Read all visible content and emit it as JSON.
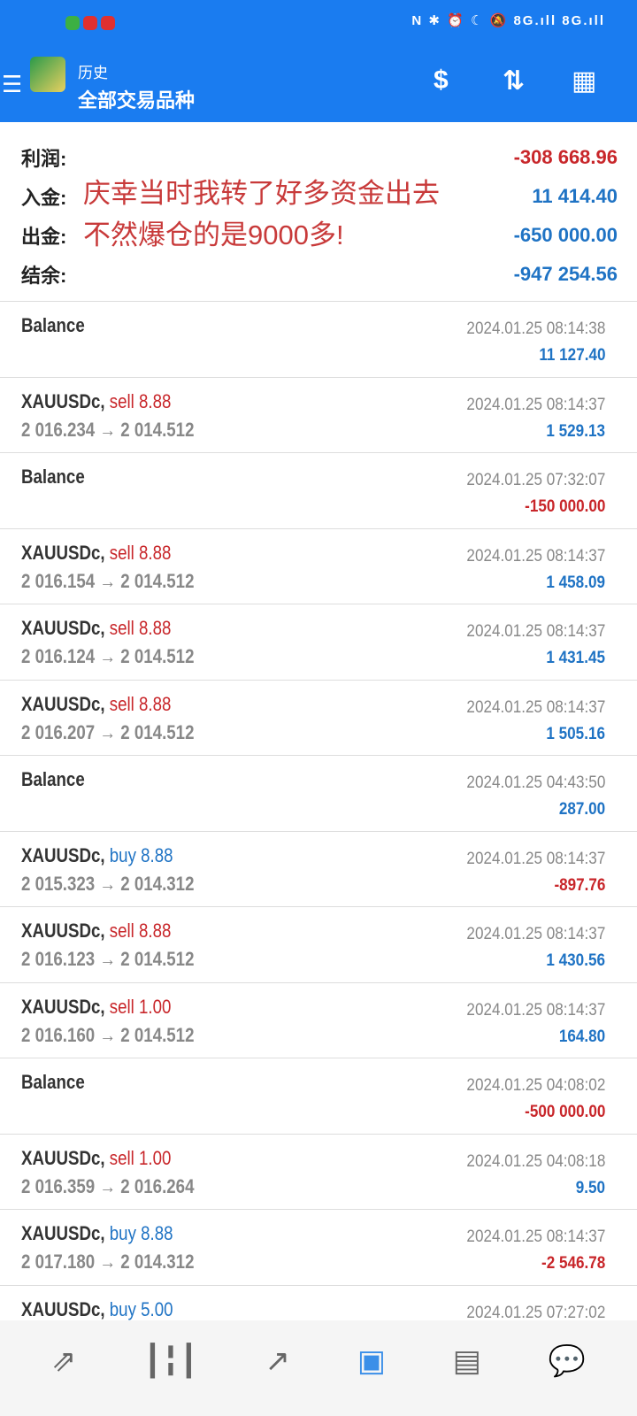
{
  "status": {
    "right": "N ✱ ⏰ ☾ 🔕 8G.ıll 8G.ıll"
  },
  "header": {
    "title": "历史",
    "subtitle": "全部交易品种",
    "icons": [
      "menu-icon",
      "app-logo",
      "currency-icon",
      "sort-icon",
      "calendar-icon"
    ]
  },
  "summary": [
    {
      "label": "利润:",
      "value": "-308 668.96",
      "color": "red"
    },
    {
      "label": "入金:",
      "value": "11 414.40",
      "color": "blue"
    },
    {
      "label": "出金:",
      "value": "-650 000.00",
      "color": "blue"
    },
    {
      "label": "结余:",
      "value": "-947 254.56",
      "color": "blue"
    }
  ],
  "overlay": {
    "line1": "庆幸当时我转了好多资金出去",
    "line2": "不然爆仓的是9000多!"
  },
  "rows": [
    {
      "sym": "Balance",
      "dir": "",
      "dirColor": "",
      "price": "",
      "time": "2024.01.25 08:14:38",
      "pl": "11 127.40",
      "plColor": "blue"
    },
    {
      "sym": "XAUUSDc,",
      "dir": "sell 8.88",
      "dirColor": "red",
      "price": "2 016.234 → 2 014.512",
      "time": "2024.01.25 08:14:37",
      "pl": "1 529.13",
      "plColor": "blue"
    },
    {
      "sym": "Balance",
      "dir": "",
      "dirColor": "",
      "price": "",
      "time": "2024.01.25 07:32:07",
      "pl": "-150 000.00",
      "plColor": "red"
    },
    {
      "sym": "XAUUSDc,",
      "dir": "sell 8.88",
      "dirColor": "red",
      "price": "2 016.154 → 2 014.512",
      "time": "2024.01.25 08:14:37",
      "pl": "1 458.09",
      "plColor": "blue"
    },
    {
      "sym": "XAUUSDc,",
      "dir": "sell 8.88",
      "dirColor": "red",
      "price": "2 016.124 → 2 014.512",
      "time": "2024.01.25 08:14:37",
      "pl": "1 431.45",
      "plColor": "blue"
    },
    {
      "sym": "XAUUSDc,",
      "dir": "sell 8.88",
      "dirColor": "red",
      "price": "2 016.207 → 2 014.512",
      "time": "2024.01.25 08:14:37",
      "pl": "1 505.16",
      "plColor": "blue"
    },
    {
      "sym": "Balance",
      "dir": "",
      "dirColor": "",
      "price": "",
      "time": "2024.01.25 04:43:50",
      "pl": "287.00",
      "plColor": "blue"
    },
    {
      "sym": "XAUUSDc,",
      "dir": "buy 8.88",
      "dirColor": "blue",
      "price": "2 015.323 → 2 014.312",
      "time": "2024.01.25 08:14:37",
      "pl": "-897.76",
      "plColor": "red"
    },
    {
      "sym": "XAUUSDc,",
      "dir": "sell 8.88",
      "dirColor": "red",
      "price": "2 016.123 → 2 014.512",
      "time": "2024.01.25 08:14:37",
      "pl": "1 430.56",
      "plColor": "blue"
    },
    {
      "sym": "XAUUSDc,",
      "dir": "sell 1.00",
      "dirColor": "red",
      "price": "2 016.160 → 2 014.512",
      "time": "2024.01.25 08:14:37",
      "pl": "164.80",
      "plColor": "blue"
    },
    {
      "sym": "Balance",
      "dir": "",
      "dirColor": "",
      "price": "",
      "time": "2024.01.25 04:08:02",
      "pl": "-500 000.00",
      "plColor": "red"
    },
    {
      "sym": "XAUUSDc,",
      "dir": "sell 1.00",
      "dirColor": "red",
      "price": "2 016.359 → 2 016.264",
      "time": "2024.01.25 04:08:18",
      "pl": "9.50",
      "plColor": "blue"
    },
    {
      "sym": "XAUUSDc,",
      "dir": "buy 8.88",
      "dirColor": "blue",
      "price": "2 017.180 → 2 014.312",
      "time": "2024.01.25 08:14:37",
      "pl": "-2 546.78",
      "plColor": "red"
    },
    {
      "sym": "XAUUSDc,",
      "dir": "buy 5.00",
      "dirColor": "blue",
      "price": "",
      "time": "2024.01.25 07:27:02",
      "pl": "",
      "plColor": "blue"
    }
  ],
  "nav": [
    {
      "name": "quotes",
      "glyph": "⇗"
    },
    {
      "name": "chart",
      "glyph": "┃╏┃"
    },
    {
      "name": "trade",
      "glyph": "↗"
    },
    {
      "name": "history",
      "glyph": "▣",
      "active": true
    },
    {
      "name": "news",
      "glyph": "▤"
    },
    {
      "name": "messages",
      "glyph": "💬"
    }
  ],
  "colors": {
    "header": "#1a7cf0",
    "red": "#c8262a",
    "blue": "#1f73c4"
  }
}
